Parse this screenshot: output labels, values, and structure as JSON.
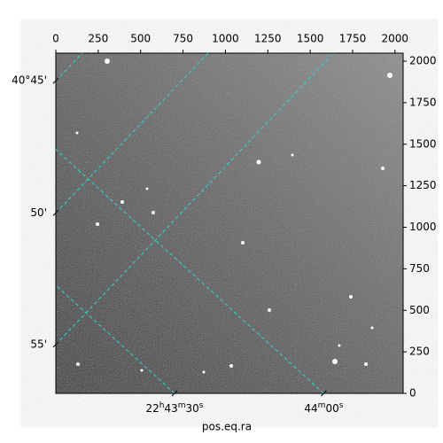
{
  "chart_data": {
    "type": "image",
    "xlabel": "pos.eq.ra",
    "xlim": [
      0,
      2048
    ],
    "ylim": [
      0,
      2048
    ],
    "xticks": [
      0,
      250,
      500,
      750,
      1000,
      1250,
      1500,
      1750,
      2000
    ],
    "yticks": [
      0,
      250,
      500,
      750,
      1000,
      1250,
      1500,
      1750,
      2000
    ],
    "ra_ticks": [
      {
        "value": 700,
        "label": "22h43m30s"
      },
      {
        "value": 1580,
        "label": "44m00s"
      }
    ],
    "dec_ticks": [
      {
        "value": 1882,
        "label": "40°45'"
      },
      {
        "value": 1086,
        "label": "50'"
      },
      {
        "value": 294,
        "label": "55'"
      }
    ],
    "grid": true
  }
}
